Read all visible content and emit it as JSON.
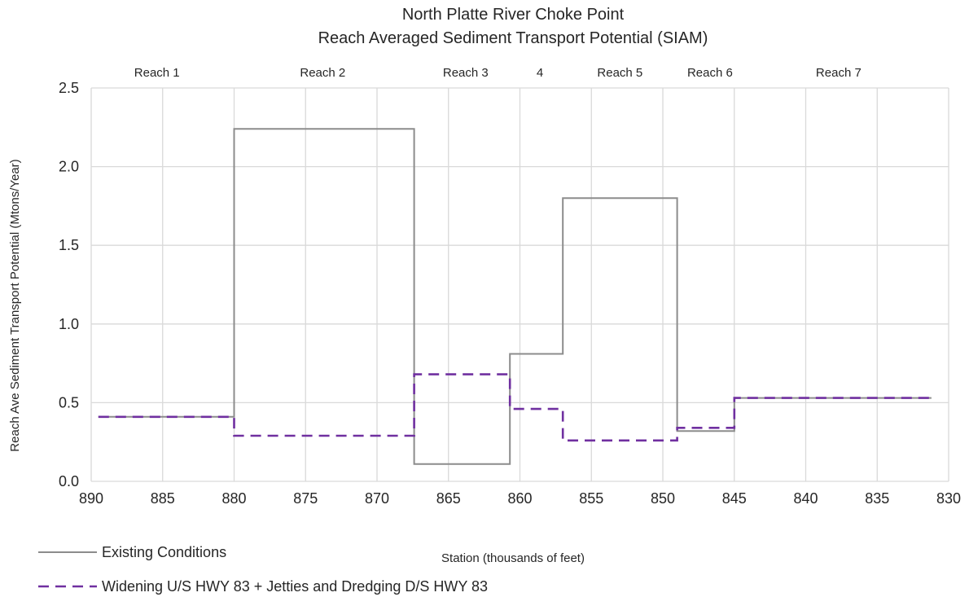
{
  "chart_data": {
    "type": "line",
    "title": "North Platte River Choke Point",
    "subtitle": "Reach Averaged Sediment Transport Potential (SIAM)",
    "xlabel": "Station (thousands of feet)",
    "ylabel": "Reach Ave Sediment Transport Potential (Mtons/Year)",
    "xlim": [
      890,
      830
    ],
    "ylim": [
      0,
      2.5
    ],
    "x_ticks": [
      890,
      885,
      880,
      875,
      870,
      865,
      860,
      855,
      850,
      845,
      840,
      835,
      830
    ],
    "y_ticks": [
      0.0,
      0.5,
      1.0,
      1.5,
      2.0,
      2.5
    ],
    "y_tick_labels": [
      "0.0",
      "0.5",
      "1.0",
      "1.5",
      "2.0",
      "2.5"
    ],
    "grid": true,
    "legend_position": "bottom-left",
    "reach_labels": [
      {
        "label": "Reach 1",
        "x": 885.4
      },
      {
        "label": "Reach 2",
        "x": 873.8
      },
      {
        "label": "Reach 3",
        "x": 863.8
      },
      {
        "label": "4",
        "x": 858.6
      },
      {
        "label": "Reach 5",
        "x": 853.0
      },
      {
        "label": "Reach 6",
        "x": 846.7
      },
      {
        "label": "Reach 7",
        "x": 837.7
      }
    ],
    "series": [
      {
        "name": "Existing Conditions",
        "color": "#8c8c8c",
        "style": "solid",
        "step_points": [
          [
            889.5,
            0.41
          ],
          [
            880.0,
            0.41
          ],
          [
            880.0,
            2.24
          ],
          [
            867.4,
            2.24
          ],
          [
            867.4,
            0.11
          ],
          [
            860.7,
            0.11
          ],
          [
            860.7,
            0.81
          ],
          [
            857.0,
            0.81
          ],
          [
            857.0,
            1.8
          ],
          [
            849.0,
            1.8
          ],
          [
            849.0,
            0.32
          ],
          [
            845.0,
            0.32
          ],
          [
            845.0,
            0.53
          ],
          [
            831.2,
            0.53
          ]
        ]
      },
      {
        "name": "Widening U/S HWY 83 + Jetties and Dredging D/S HWY 83",
        "color": "#7030a0",
        "style": "dashed",
        "step_points": [
          [
            889.5,
            0.41
          ],
          [
            880.0,
            0.41
          ],
          [
            880.0,
            0.29
          ],
          [
            867.4,
            0.29
          ],
          [
            867.4,
            0.68
          ],
          [
            860.7,
            0.68
          ],
          [
            860.7,
            0.46
          ],
          [
            857.0,
            0.46
          ],
          [
            857.0,
            0.26
          ],
          [
            849.0,
            0.26
          ],
          [
            849.0,
            0.34
          ],
          [
            845.0,
            0.34
          ],
          [
            845.0,
            0.53
          ],
          [
            831.2,
            0.53
          ]
        ]
      }
    ]
  }
}
